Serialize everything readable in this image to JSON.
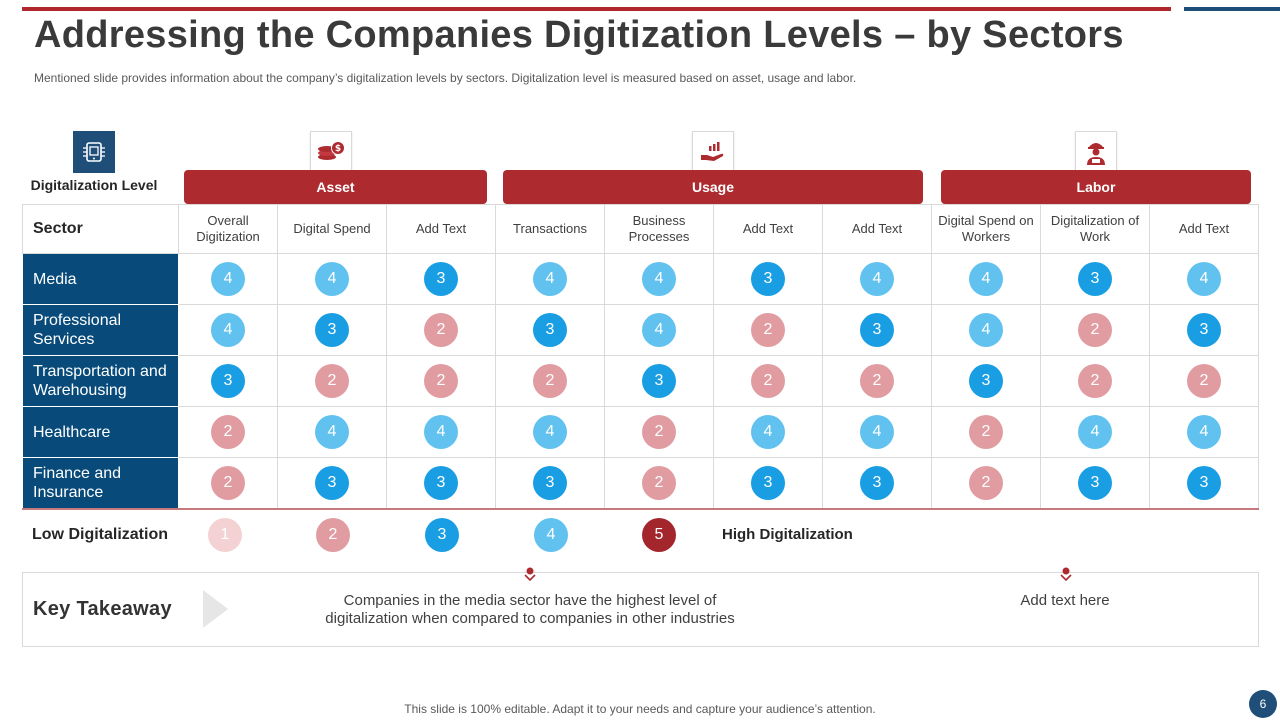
{
  "title": "Addressing the Companies Digitization Levels – by Sectors",
  "subtitle": "Mentioned slide provides information about the company’s digitalization levels by sectors. Digitalization level is measured based on asset, usage and labor.",
  "digitalization_label": "Digitalization Level",
  "groups": {
    "asset": "Asset",
    "usage": "Usage",
    "labor": "Labor"
  },
  "table": {
    "sector_header": "Sector",
    "columns": [
      "Overall Digitization",
      "Digital Spend",
      "Add Text",
      "Transactions",
      "Business Processes",
      "Add Text",
      "Add Text",
      "Digital Spend on Workers",
      "Digitalization of Work",
      "Add Text"
    ],
    "rows": [
      {
        "sector": "Media",
        "values": [
          4,
          4,
          3,
          4,
          4,
          3,
          4,
          4,
          3,
          4
        ]
      },
      {
        "sector": "Professional Services",
        "values": [
          4,
          3,
          2,
          3,
          4,
          2,
          3,
          4,
          2,
          3
        ]
      },
      {
        "sector": "Transportation and Warehousing",
        "values": [
          3,
          2,
          2,
          2,
          3,
          2,
          2,
          3,
          2,
          2
        ]
      },
      {
        "sector": "Healthcare",
        "values": [
          2,
          4,
          4,
          4,
          2,
          4,
          4,
          2,
          4,
          4
        ]
      },
      {
        "sector": "Finance and Insurance",
        "values": [
          2,
          3,
          3,
          3,
          2,
          3,
          3,
          2,
          3,
          3
        ]
      }
    ]
  },
  "legend": {
    "low_label": "Low Digitalization",
    "high_label": "High Digitalization",
    "levels": [
      1,
      2,
      3,
      4,
      5
    ]
  },
  "takeaway": {
    "label": "Key Takeaway",
    "text_1": "Companies in the media sector have the highest level of digitalization when compared to companies in other industries",
    "text_2": "Add text here"
  },
  "footer": "This slide is 100% editable. Adapt it to your needs and capture your audience’s attention.",
  "page_number": "6",
  "colors": {
    "accent_red": "#ad2a2f",
    "navy": "#084b7a",
    "level_1": "#f4d2d4",
    "level_2": "#e09ca1",
    "level_3": "#1a9ee3",
    "level_4": "#61c2f0",
    "level_5": "#a3262c"
  },
  "icons": {
    "digital": "digital-device-icon",
    "asset": "coins-icon",
    "usage": "hand-chart-icon",
    "labor": "worker-icon"
  }
}
